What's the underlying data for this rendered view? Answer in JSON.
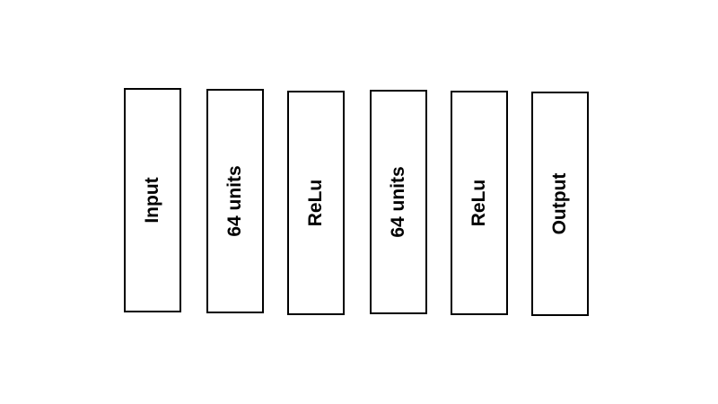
{
  "diagram": {
    "layers": [
      {
        "label": "Input"
      },
      {
        "label": "64 units"
      },
      {
        "label": "ReLu"
      },
      {
        "label": "64 units"
      },
      {
        "label": "ReLu"
      },
      {
        "label": "Output"
      }
    ]
  }
}
